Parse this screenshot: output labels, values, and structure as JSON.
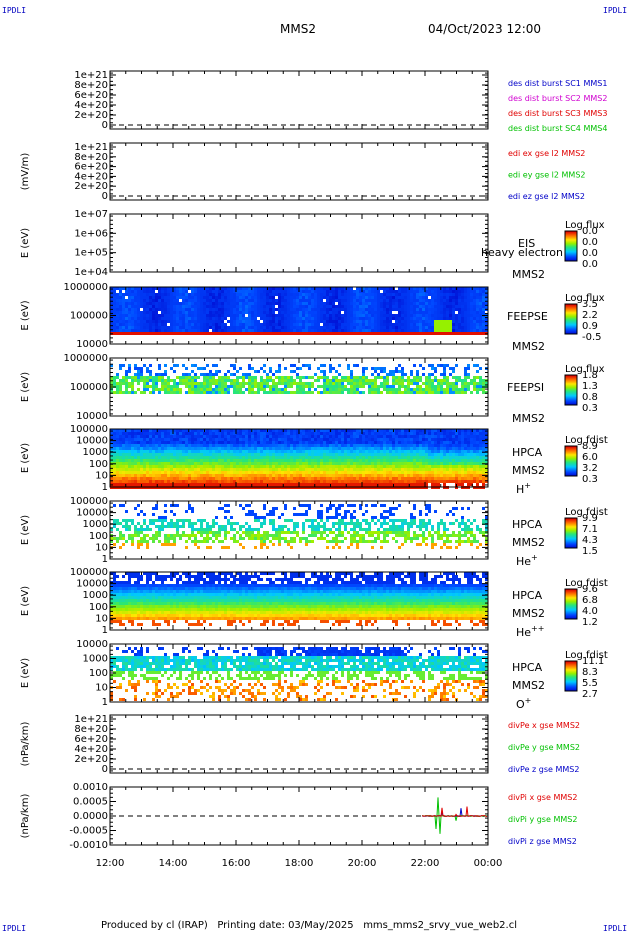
{
  "header": {
    "corner_label": "IPDLI",
    "spacecraft": "MMS2",
    "datetime": "04/Oct/2023 12:00"
  },
  "footer": {
    "text": "Produced by cl (IRAP)   Printing date: 03/May/2025   mms_mms2_srvy_vue_web2.cl"
  },
  "colors": {
    "mms1": "#0000c8",
    "mms2": "#d000d0",
    "mms3": "#e00000",
    "mms4": "#00c000",
    "x": "#e00000",
    "y": "#00c000",
    "z": "#0000c8"
  },
  "chart_data": {
    "type": "multi-panel stacked time series / spectrogram",
    "x_ticks": [
      "12:00",
      "14:00",
      "16:00",
      "18:00",
      "20:00",
      "22:00",
      "00:00"
    ],
    "x_range_hours": [
      12,
      24
    ],
    "panels": [
      {
        "type": "line",
        "ylabel": "",
        "yticks": [
          "1e+21",
          "8e+20",
          "6e+20",
          "4e+20",
          "2e+20",
          "0"
        ],
        "dashed_zero": true,
        "legend": [
          {
            "text": "des dist burst SC1 MMS1",
            "color": "mms1"
          },
          {
            "text": "des dist burst SC2 MMS2",
            "color": "mms2"
          },
          {
            "text": "des dist burst SC3 MMS3",
            "color": "mms3"
          },
          {
            "text": "des dist burst SC4 MMS4",
            "color": "mms4"
          }
        ]
      },
      {
        "type": "line",
        "ylabel": "(mV/m)",
        "yticks": [
          "1e+21",
          "8e+20",
          "6e+20",
          "4e+20",
          "2e+20",
          "0"
        ],
        "dashed_zero": true,
        "legend": [
          {
            "text": "edi ex gse l2 MMS2",
            "color": "x"
          },
          {
            "text": "edi ey gse l2 MMS2",
            "color": "y"
          },
          {
            "text": "edi ez gse l2 MMS2",
            "color": "z"
          }
        ]
      },
      {
        "type": "heatmap",
        "ylabel": "E (eV)",
        "yticks": [
          "1e+07",
          "1e+06",
          "1e+05",
          "1e+04"
        ],
        "labels": [
          "EIS",
          "MMS2"
        ],
        "overlay_text": "heavy electron to",
        "colorbar_title": "Log flux",
        "colorbar_ticks": [
          "0.0",
          "0.0",
          "0.0",
          "0.0"
        ],
        "fill": "empty"
      },
      {
        "type": "heatmap",
        "ylabel": "E (eV)",
        "yticks": [
          "1000000",
          "100000",
          "10000"
        ],
        "labels": [
          "FEEPSE",
          "MMS2"
        ],
        "colorbar_title": "Log flux",
        "colorbar_ticks": [
          "3.5",
          "2.2",
          "0.9",
          "-0.5"
        ],
        "fill": "feepse"
      },
      {
        "type": "heatmap",
        "ylabel": "E (eV)",
        "yticks": [
          "1000000",
          "100000",
          "10000"
        ],
        "labels": [
          "FEEPSI",
          "MMS2"
        ],
        "colorbar_title": "Log flux",
        "colorbar_ticks": [
          "1.8",
          "1.3",
          "0.8",
          "0.3"
        ],
        "fill": "feepsi"
      },
      {
        "type": "heatmap",
        "ylabel": "E (eV)",
        "yticks": [
          "100000",
          "10000",
          "1000",
          "100",
          "10",
          "1"
        ],
        "labels": [
          "HPCA",
          "MMS2",
          "H",
          "+"
        ],
        "colorbar_title": "Log fdist",
        "colorbar_ticks": [
          "8.9",
          "6.0",
          "3.2",
          "0.3"
        ],
        "fill": "hplus"
      },
      {
        "type": "heatmap",
        "ylabel": "E (eV)",
        "yticks": [
          "100000",
          "10000",
          "1000",
          "100",
          "10",
          "1"
        ],
        "labels": [
          "HPCA",
          "MMS2",
          "He",
          "+"
        ],
        "colorbar_title": "Log fdist",
        "colorbar_ticks": [
          "9.9",
          "7.1",
          "4.3",
          "1.5"
        ],
        "fill": "heplus"
      },
      {
        "type": "heatmap",
        "ylabel": "E (eV)",
        "yticks": [
          "100000",
          "10000",
          "1000",
          "100",
          "10",
          "1"
        ],
        "labels": [
          "HPCA",
          "MMS2",
          "He",
          "++"
        ],
        "colorbar_title": "Log fdist",
        "colorbar_ticks": [
          "9.6",
          "6.8",
          "4.0",
          "1.2"
        ],
        "fill": "heplusplus"
      },
      {
        "type": "heatmap",
        "ylabel": "E (eV)",
        "yticks": [
          "10000",
          "1000",
          "100",
          "10",
          "1"
        ],
        "labels": [
          "HPCA",
          "MMS2",
          "O",
          "+"
        ],
        "colorbar_title": "Log fdist",
        "colorbar_ticks": [
          "11.1",
          "8.3",
          "5.5",
          "2.7"
        ],
        "fill": "oplus"
      },
      {
        "type": "line",
        "ylabel": "(nPa/km)",
        "yticks": [
          "1e+21",
          "8e+20",
          "6e+20",
          "4e+20",
          "2e+20",
          "0"
        ],
        "dashed_zero": true,
        "legend": [
          {
            "text": "divPe x gse MMS2",
            "color": "x"
          },
          {
            "text": "divPe y gse MMS2",
            "color": "y"
          },
          {
            "text": "divPe z gse MMS2",
            "color": "z"
          }
        ]
      },
      {
        "type": "line",
        "ylabel": "(nPa/km)",
        "yticks": [
          "0.0010",
          "0.0005",
          "0.0000",
          "-0.0005",
          "-0.0010"
        ],
        "dashed_zero": true,
        "spikes": true,
        "legend": [
          {
            "text": "divPi x gse MMS2",
            "color": "x"
          },
          {
            "text": "divPi y gse MMS2",
            "color": "y"
          },
          {
            "text": "divPi z gse MMS2",
            "color": "z"
          }
        ]
      }
    ]
  }
}
